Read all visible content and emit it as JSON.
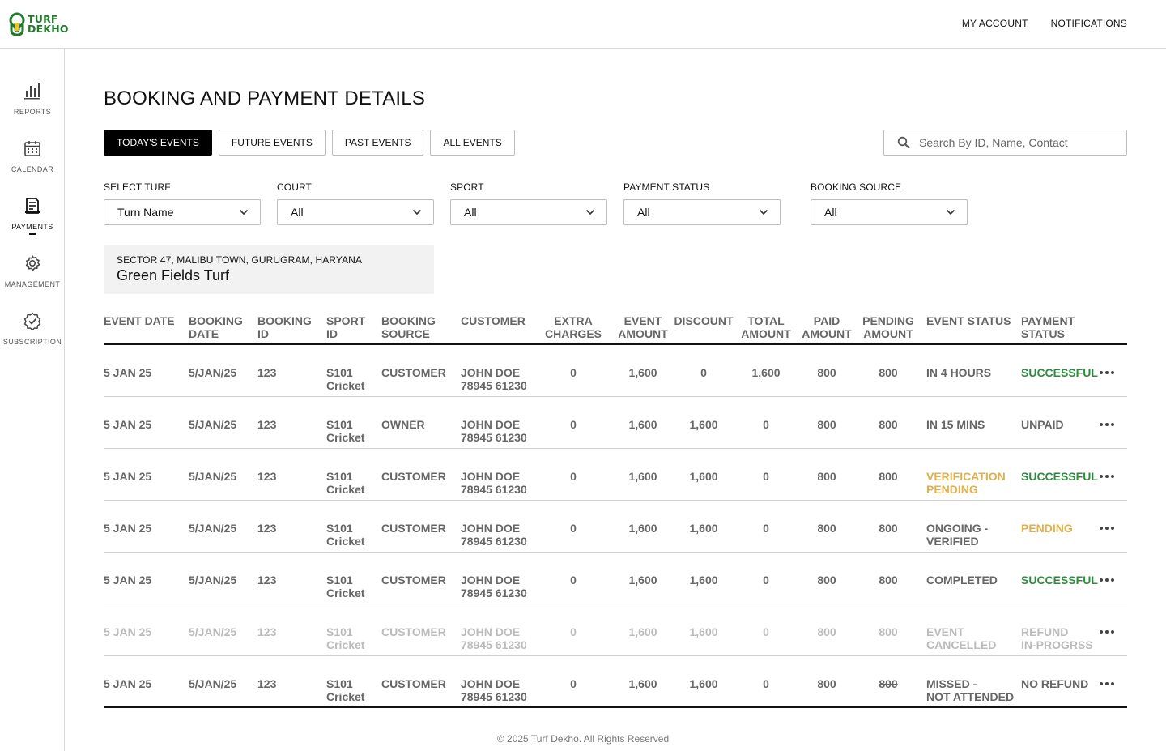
{
  "brand": {
    "line1": "TURF",
    "line2": "DEKHO",
    "color": "#1f7a2a"
  },
  "topnav": {
    "account": "MY ACCOUNT",
    "notifications": "NOTIFICATIONS"
  },
  "sidebar": [
    {
      "label": "REPORTS",
      "icon": "bar-chart-icon"
    },
    {
      "label": "CALENDAR",
      "icon": "calendar-icon"
    },
    {
      "label": "PAYMENTS",
      "icon": "receipt-icon",
      "active": true
    },
    {
      "label": "MANAGEMENT",
      "icon": "gear-icon"
    },
    {
      "label": "SUBSCRIPTION",
      "icon": "badge-check-icon"
    }
  ],
  "page_title": "BOOKING AND PAYMENT DETAILS",
  "tabs": [
    "TODAY'S EVENTS",
    "FUTURE EVENTS",
    "PAST EVENTS",
    "ALL EVENTS"
  ],
  "active_tab": 0,
  "search": {
    "placeholder": "Search By ID, Name, Contact"
  },
  "filters": [
    {
      "label": "SELECT TURF",
      "value": "Turn Name"
    },
    {
      "label": "COURT",
      "value": "All"
    },
    {
      "label": "SPORT",
      "value": "All"
    },
    {
      "label": "PAYMENT STATUS",
      "value": "All"
    },
    {
      "label": "BOOKING SOURCE",
      "value": "All"
    }
  ],
  "turf": {
    "address": "SECTOR 47, MALIBU TOWN, GURUGRAM, HARYANA",
    "name": "Green Fields Turf"
  },
  "columns": {
    "event_date": [
      "EVENT DATE"
    ],
    "booking_date": [
      "BOOKING",
      "DATE"
    ],
    "booking_id": [
      "BOOKING",
      "ID"
    ],
    "sport_id": [
      "SPORT",
      "ID"
    ],
    "booking_source": [
      "BOOKING",
      "SOURCE"
    ],
    "customer": [
      "CUSTOMER"
    ],
    "extra_charges": [
      "EXTRA",
      "CHARGES"
    ],
    "event_amount": [
      "EVENT",
      "AMOUNT"
    ],
    "discount": [
      "DISCOUNT"
    ],
    "total_amount": [
      "TOTAL",
      "AMOUNT"
    ],
    "paid_amount": [
      "PAID",
      "AMOUNT"
    ],
    "pending_amount": [
      "PENDING",
      "AMOUNT"
    ],
    "event_status": [
      "EVENT STATUS"
    ],
    "payment_status": [
      "PAYMENT",
      "STATUS"
    ]
  },
  "rows": [
    {
      "event_date": "5 JAN 25",
      "booking_date": "5/JAN/25",
      "booking_id": "123",
      "sport_id": [
        "S101",
        "Cricket"
      ],
      "booking_source": "CUSTOMER",
      "customer": [
        "JOHN DOE",
        "78945 61230"
      ],
      "extra_charges": "0",
      "event_amount": "1,600",
      "discount": "0",
      "total_amount": "1,600",
      "paid_amount": "800",
      "pending_amount": "800",
      "event_status": [
        "IN 4 HOURS"
      ],
      "payment_status": [
        "SUCCESSFUL"
      ],
      "payment_color": "green"
    },
    {
      "event_date": "5 JAN 25",
      "booking_date": "5/JAN/25",
      "booking_id": "123",
      "sport_id": [
        "S101",
        "Cricket"
      ],
      "booking_source": "OWNER",
      "customer": [
        "JOHN DOE",
        "78945 61230"
      ],
      "extra_charges": "0",
      "event_amount": "1,600",
      "discount": "1,600",
      "total_amount": "0",
      "paid_amount": "800",
      "pending_amount": "800",
      "event_status": [
        "IN 15 MINS"
      ],
      "payment_status": [
        "UNPAID"
      ],
      "payment_color": ""
    },
    {
      "event_date": "5 JAN 25",
      "booking_date": "5/JAN/25",
      "booking_id": "123",
      "sport_id": [
        "S101",
        "Cricket"
      ],
      "booking_source": "CUSTOMER",
      "customer": [
        "JOHN DOE",
        "78945 61230"
      ],
      "extra_charges": "0",
      "event_amount": "1,600",
      "discount": "1,600",
      "total_amount": "0",
      "paid_amount": "800",
      "pending_amount": "800",
      "event_status": [
        "VERIFICATION",
        "PENDING"
      ],
      "event_color": "amber",
      "payment_status": [
        "SUCCESSFUL"
      ],
      "payment_color": "green"
    },
    {
      "event_date": "5 JAN 25",
      "booking_date": "5/JAN/25",
      "booking_id": "123",
      "sport_id": [
        "S101",
        "Cricket"
      ],
      "booking_source": "CUSTOMER",
      "customer": [
        "JOHN DOE",
        "78945 61230"
      ],
      "extra_charges": "0",
      "event_amount": "1,600",
      "discount": "1,600",
      "total_amount": "0",
      "paid_amount": "800",
      "pending_amount": "800",
      "event_status": [
        "ONGOING -",
        "VERIFIED"
      ],
      "payment_status": [
        "PENDING"
      ],
      "payment_color": "amber"
    },
    {
      "event_date": "5 JAN 25",
      "booking_date": "5/JAN/25",
      "booking_id": "123",
      "sport_id": [
        "S101",
        "Cricket"
      ],
      "booking_source": "CUSTOMER",
      "customer": [
        "JOHN DOE",
        "78945 61230"
      ],
      "extra_charges": "0",
      "event_amount": "1,600",
      "discount": "1,600",
      "total_amount": "0",
      "paid_amount": "800",
      "pending_amount": "800",
      "event_status": [
        "COMPLETED"
      ],
      "payment_status": [
        "SUCCESSFUL"
      ],
      "payment_color": "green"
    },
    {
      "event_date": "5 JAN 25",
      "booking_date": "5/JAN/25",
      "booking_id": "123",
      "sport_id": [
        "S101",
        "Cricket"
      ],
      "booking_source": "CUSTOMER",
      "customer": [
        "JOHN DOE",
        "78945 61230"
      ],
      "extra_charges": "0",
      "event_amount": "1,600",
      "discount": "1,600",
      "total_amount": "0",
      "paid_amount": "800",
      "pending_amount": "800",
      "event_status": [
        "EVENT",
        "CANCELLED"
      ],
      "payment_status": [
        "REFUND",
        "IN-PROGRSS"
      ],
      "payment_color": "",
      "cancelled": true
    },
    {
      "event_date": "5 JAN 25",
      "booking_date": "5/JAN/25",
      "booking_id": "123",
      "sport_id": [
        "S101",
        "Cricket"
      ],
      "booking_source": "CUSTOMER",
      "customer": [
        "JOHN DOE",
        "78945 61230"
      ],
      "extra_charges": "0",
      "event_amount": "1,600",
      "discount": "1,600",
      "total_amount": "0",
      "paid_amount": "800",
      "pending_amount": "800",
      "pending_struck": true,
      "event_status": [
        "MISSED -",
        "NOT ATTENDED"
      ],
      "payment_status": [
        "NO REFUND"
      ],
      "payment_color": ""
    }
  ],
  "footer": "© 2025 Turf Dekho. All Rights Reserved"
}
